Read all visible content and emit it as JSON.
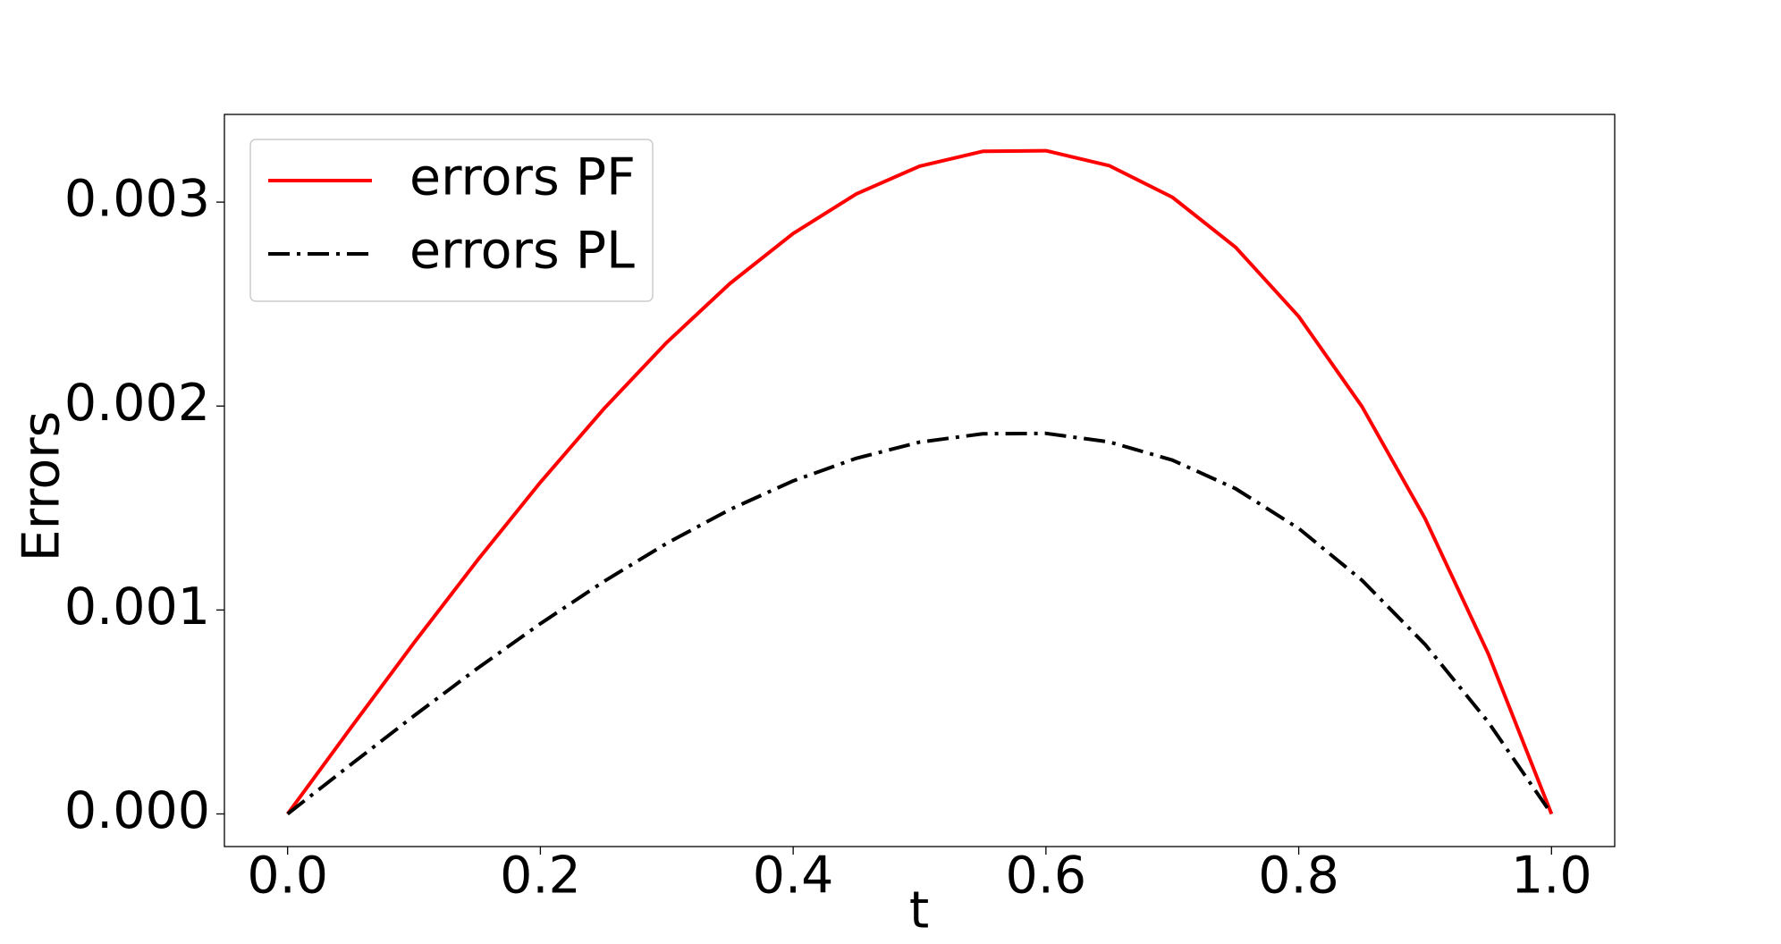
{
  "chart_data": {
    "type": "line",
    "xlabel": "t",
    "ylabel": "Errors",
    "x": [
      0,
      0.05,
      0.1,
      0.15,
      0.2,
      0.25,
      0.3,
      0.35,
      0.4,
      0.45,
      0.5,
      0.55,
      0.6,
      0.65,
      0.7,
      0.75,
      0.8,
      0.85,
      0.9,
      0.95,
      1
    ],
    "series": [
      {
        "name": "errors PF",
        "color": "#ff0000",
        "style": "solid",
        "values": [
          0,
          0.000422,
          0.000839,
          0.001242,
          0.001626,
          0.001985,
          0.002312,
          0.002601,
          0.002846,
          0.00304,
          0.003176,
          0.003249,
          0.003252,
          0.003179,
          0.003024,
          0.002779,
          0.002439,
          0.001998,
          0.001448,
          0.000785,
          0
        ]
      },
      {
        "name": "errors PL",
        "color": "#000000",
        "style": "dashdot",
        "values": [
          0,
          0.000242,
          0.000481,
          0.000713,
          0.000933,
          0.001139,
          0.001327,
          0.001493,
          0.001633,
          0.001744,
          0.001823,
          0.001864,
          0.001866,
          0.001824,
          0.001735,
          0.001595,
          0.0014,
          0.001146,
          0.000831,
          0.00045,
          0
        ]
      }
    ],
    "xlim": [
      -0.05,
      1.05
    ],
    "xticks": [
      {
        "value": 0,
        "label": "0.0"
      },
      {
        "value": 0.2,
        "label": "0.2"
      },
      {
        "value": 0.4,
        "label": "0.4"
      },
      {
        "value": 0.6,
        "label": "0.6"
      },
      {
        "value": 0.8,
        "label": "0.8"
      },
      {
        "value": 1,
        "label": "1.0"
      }
    ],
    "ylim": [
      -0.00016,
      0.00343
    ],
    "yticks": [
      {
        "value": 0,
        "label": "0.000"
      },
      {
        "value": 0.001,
        "label": "0.001"
      },
      {
        "value": 0.002,
        "label": "0.002"
      },
      {
        "value": 0.003,
        "label": "0.003"
      }
    ],
    "legend": "upper left",
    "grid": false
  }
}
